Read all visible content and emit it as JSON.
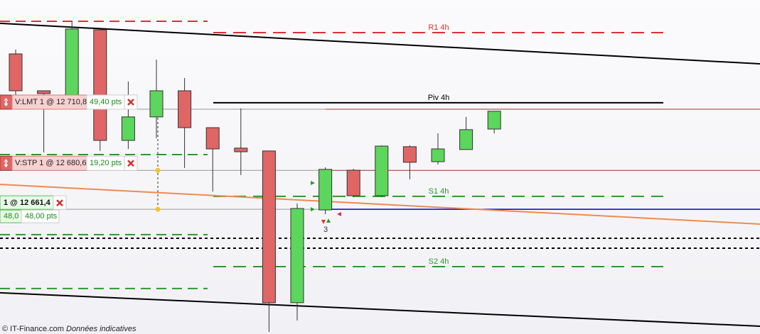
{
  "chart_data": {
    "type": "candlestick",
    "open": [
      12738.1,
      12719.9,
      12714.0,
      12750.0,
      12695.4,
      12707.0,
      12719.9,
      12701.7,
      12691.6,
      12690.2,
      12615.3,
      12661.1,
      12680.7,
      12668.1,
      12692.3,
      12684.9,
      12690.9,
      12701.0
    ],
    "high": [
      12740.2,
      12719.9,
      12754.2,
      12750.0,
      12724.5,
      12735.3,
      12726.2,
      12701.7,
      12711.2,
      12690.2,
      12664.3,
      12682.1,
      12681.4,
      12693.0,
      12693.0,
      12698.9,
      12707.0,
      12709.8
    ],
    "low": [
      12714.0,
      12689.5,
      12714.0,
      12690.2,
      12691.2,
      12696.5,
      12681.8,
      12670.2,
      12678.3,
      12600.9,
      12606.5,
      12659.0,
      12667.4,
      12667.4,
      12676.2,
      12683.5,
      12690.9,
      12698.9
    ],
    "close": [
      12719.9,
      12718.5,
      12750.4,
      12695.4,
      12707.0,
      12719.9,
      12701.7,
      12691.2,
      12689.8,
      12615.3,
      12661.8,
      12681.1,
      12668.1,
      12692.6,
      12684.6,
      12691.2,
      12700.7,
      12709.8
    ],
    "up_color": "#5cd65c",
    "down_color": "#e06666",
    "ylim": [
      12599.85,
      12764.7
    ],
    "pivots": [
      {
        "label": "R1 4h",
        "value": 12748.6,
        "color": "#e03030",
        "style": "dashed"
      },
      {
        "label": "Piv 4h",
        "value": 12714.0,
        "color": "#000000",
        "style": "solid"
      },
      {
        "label": "S1 4h",
        "value": 12667.8,
        "color": "#2a9a2a",
        "style": "dashed"
      },
      {
        "label": "S2 4h",
        "value": 12633.1,
        "color": "#2a9a2a",
        "style": "dashed"
      }
    ],
    "previous_levels": [
      {
        "value": 12754.2,
        "color": "#e03030"
      },
      {
        "value": 12688.4,
        "color": "#2a9a2a"
      },
      {
        "value": 12648.9,
        "color": "#2a9a2a"
      },
      {
        "value": 12622.3,
        "color": "#2a9a2a"
      }
    ],
    "dotted_levels": [
      12647.1,
      12642.2
    ],
    "trendlines": [
      {
        "color": "#000000",
        "start": 12753.2,
        "end": 12733.2
      },
      {
        "color": "#000000",
        "start": 12620.2,
        "end": 12603.7
      },
      {
        "color": "#f08a50",
        "start": 12673.7,
        "end": 12654.1
      }
    ],
    "orders": [
      {
        "label": "V:LMT 1 @ 12 710,8",
        "distance": "49,40 pts",
        "value": 12710.8
      },
      {
        "label": "V:STP 1 @ 12 680,6",
        "distance": "19,20 pts",
        "value": 12680.6
      }
    ],
    "position": {
      "label": "1 @ 12 661,4",
      "points": "48,0",
      "distance": "48,00 pts",
      "value": 12661.4,
      "color": "#0000c0"
    },
    "marker_label": "3"
  },
  "footer": {
    "source": "© IT-Finance.com",
    "note": "Données indicatives"
  }
}
